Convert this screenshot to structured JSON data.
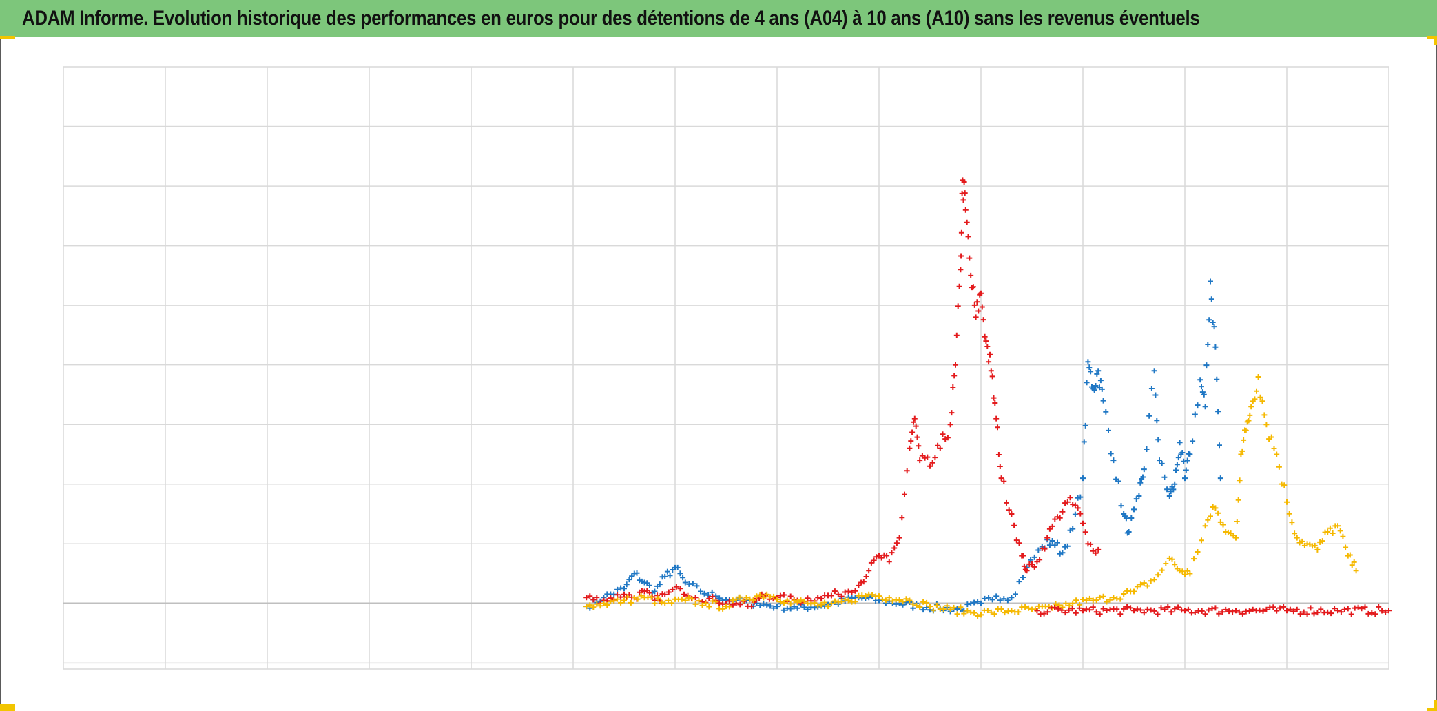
{
  "title": "ADAM Informe. Evolution historique des performances en euros pour des détentions de 4 ans (A04) à 10 ans (A10) sans les revenus éventuels",
  "colors": {
    "title_bg": "#7dc67b",
    "grid": "#d9d9d9",
    "zero_line": "#bfbfbf",
    "corner_accent": "#f2c500"
  },
  "chart_data": {
    "type": "scatter",
    "marker": "plus",
    "title": "",
    "xlabel": "",
    "ylabel": "",
    "xlim": [
      0,
      13
    ],
    "ylim": [
      -1.1,
      9
    ],
    "x_gridlines": 13,
    "y_gridlines": 10,
    "zero_line": 0,
    "tick_labels_visible": false,
    "legend": "none",
    "series": [
      {
        "color": "#1f77c4",
        "points": [
          [
            5.13,
            -0.05
          ],
          [
            5.3,
            0.1
          ],
          [
            5.5,
            0.25
          ],
          [
            5.6,
            0.5
          ],
          [
            5.7,
            0.35
          ],
          [
            5.8,
            0.2
          ],
          [
            5.9,
            0.45
          ],
          [
            6.0,
            0.6
          ],
          [
            6.1,
            0.35
          ],
          [
            6.25,
            0.2
          ],
          [
            6.4,
            0.12
          ],
          [
            6.6,
            0.05
          ],
          [
            6.8,
            0.0
          ],
          [
            7.0,
            -0.05
          ],
          [
            7.2,
            -0.08
          ],
          [
            7.5,
            -0.02
          ],
          [
            7.8,
            0.1
          ],
          [
            8.0,
            0.05
          ],
          [
            8.2,
            0.0
          ],
          [
            8.4,
            -0.05
          ],
          [
            8.6,
            -0.08
          ],
          [
            8.8,
            -0.1
          ],
          [
            9.0,
            0.0
          ],
          [
            9.15,
            0.12
          ],
          [
            9.3,
            0.1
          ],
          [
            9.45,
            0.6
          ],
          [
            9.6,
            0.95
          ],
          [
            9.7,
            1.05
          ],
          [
            9.8,
            0.85
          ],
          [
            9.9,
            1.25
          ],
          [
            10.0,
            2.1
          ],
          [
            10.05,
            4.05
          ],
          [
            10.1,
            3.6
          ],
          [
            10.15,
            3.9
          ],
          [
            10.2,
            3.4
          ],
          [
            10.3,
            2.4
          ],
          [
            10.4,
            1.5
          ],
          [
            10.45,
            1.2
          ],
          [
            10.55,
            1.8
          ],
          [
            10.6,
            2.25
          ],
          [
            10.7,
            3.9
          ],
          [
            10.75,
            2.4
          ],
          [
            10.85,
            1.8
          ],
          [
            10.9,
            2.0
          ],
          [
            10.95,
            2.7
          ],
          [
            11.0,
            2.1
          ],
          [
            11.05,
            2.5
          ],
          [
            11.15,
            3.75
          ],
          [
            11.2,
            3.3
          ],
          [
            11.25,
            5.4
          ],
          [
            11.3,
            4.3
          ],
          [
            11.35,
            2.1
          ]
        ]
      },
      {
        "color": "#e31a1c",
        "points": [
          [
            5.13,
            0.1
          ],
          [
            5.3,
            0.05
          ],
          [
            5.5,
            0.15
          ],
          [
            5.6,
            0.1
          ],
          [
            5.7,
            0.2
          ],
          [
            5.8,
            0.05
          ],
          [
            5.9,
            0.15
          ],
          [
            6.05,
            0.25
          ],
          [
            6.2,
            0.1
          ],
          [
            6.4,
            0.05
          ],
          [
            6.6,
            0.0
          ],
          [
            6.75,
            -0.05
          ],
          [
            6.85,
            0.15
          ],
          [
            7.0,
            0.1
          ],
          [
            7.2,
            0.05
          ],
          [
            7.4,
            0.1
          ],
          [
            7.6,
            0.15
          ],
          [
            7.8,
            0.3
          ],
          [
            7.9,
            0.55
          ],
          [
            8.0,
            0.8
          ],
          [
            8.1,
            0.7
          ],
          [
            8.2,
            1.1
          ],
          [
            8.3,
            2.6
          ],
          [
            8.35,
            3.1
          ],
          [
            8.4,
            2.4
          ],
          [
            8.5,
            2.3
          ],
          [
            8.6,
            2.6
          ],
          [
            8.7,
            3.0
          ],
          [
            8.75,
            4.0
          ],
          [
            8.8,
            5.6
          ],
          [
            8.82,
            7.1
          ],
          [
            8.85,
            6.6
          ],
          [
            8.9,
            5.5
          ],
          [
            8.95,
            4.8
          ],
          [
            9.0,
            5.2
          ],
          [
            9.05,
            4.4
          ],
          [
            9.1,
            3.9
          ],
          [
            9.15,
            3.1
          ],
          [
            9.2,
            2.1
          ],
          [
            9.3,
            1.5
          ],
          [
            9.4,
            0.8
          ],
          [
            9.45,
            0.55
          ],
          [
            9.55,
            0.7
          ],
          [
            9.65,
            1.1
          ],
          [
            9.75,
            1.45
          ],
          [
            9.85,
            1.7
          ],
          [
            9.95,
            1.6
          ],
          [
            10.05,
            1.0
          ],
          [
            10.15,
            0.9
          ]
        ]
      },
      {
        "color": "#f5b800",
        "points": [
          [
            5.13,
            -0.05
          ],
          [
            5.3,
            0.0
          ],
          [
            5.5,
            0.05
          ],
          [
            5.7,
            0.1
          ],
          [
            5.9,
            0.0
          ],
          [
            6.1,
            0.05
          ],
          [
            6.3,
            0.0
          ],
          [
            6.5,
            -0.05
          ],
          [
            6.7,
            0.1
          ],
          [
            6.9,
            0.15
          ],
          [
            7.1,
            0.05
          ],
          [
            7.3,
            0.0
          ],
          [
            7.5,
            -0.05
          ],
          [
            7.7,
            0.05
          ],
          [
            7.9,
            0.15
          ],
          [
            8.1,
            0.1
          ],
          [
            8.3,
            0.05
          ],
          [
            8.5,
            -0.05
          ],
          [
            8.7,
            -0.1
          ],
          [
            8.9,
            -0.15
          ],
          [
            9.1,
            -0.15
          ],
          [
            9.3,
            -0.12
          ],
          [
            9.5,
            -0.1
          ],
          [
            9.7,
            -0.08
          ],
          [
            9.9,
            0.0
          ],
          [
            10.1,
            0.05
          ],
          [
            10.3,
            0.1
          ],
          [
            10.5,
            0.2
          ],
          [
            10.7,
            0.4
          ],
          [
            10.85,
            0.75
          ],
          [
            10.95,
            0.55
          ],
          [
            11.05,
            0.5
          ],
          [
            11.2,
            1.3
          ],
          [
            11.3,
            1.6
          ],
          [
            11.4,
            1.2
          ],
          [
            11.5,
            1.1
          ],
          [
            11.55,
            2.5
          ],
          [
            11.6,
            2.9
          ],
          [
            11.65,
            3.3
          ],
          [
            11.72,
            3.8
          ],
          [
            11.8,
            3.0
          ],
          [
            11.9,
            2.5
          ],
          [
            12.0,
            1.7
          ],
          [
            12.1,
            1.1
          ],
          [
            12.2,
            1.0
          ],
          [
            12.3,
            0.9
          ],
          [
            12.4,
            1.2
          ],
          [
            12.5,
            1.3
          ],
          [
            12.6,
            0.8
          ],
          [
            12.68,
            0.55
          ]
        ]
      },
      {
        "color": "#e31a1c",
        "points": [
          [
            9.55,
            -0.12
          ],
          [
            10.0,
            -0.12
          ],
          [
            10.5,
            -0.12
          ],
          [
            11.0,
            -0.12
          ],
          [
            11.5,
            -0.12
          ],
          [
            12.0,
            -0.12
          ],
          [
            12.5,
            -0.12
          ],
          [
            13.0,
            -0.12
          ]
        ]
      }
    ]
  }
}
